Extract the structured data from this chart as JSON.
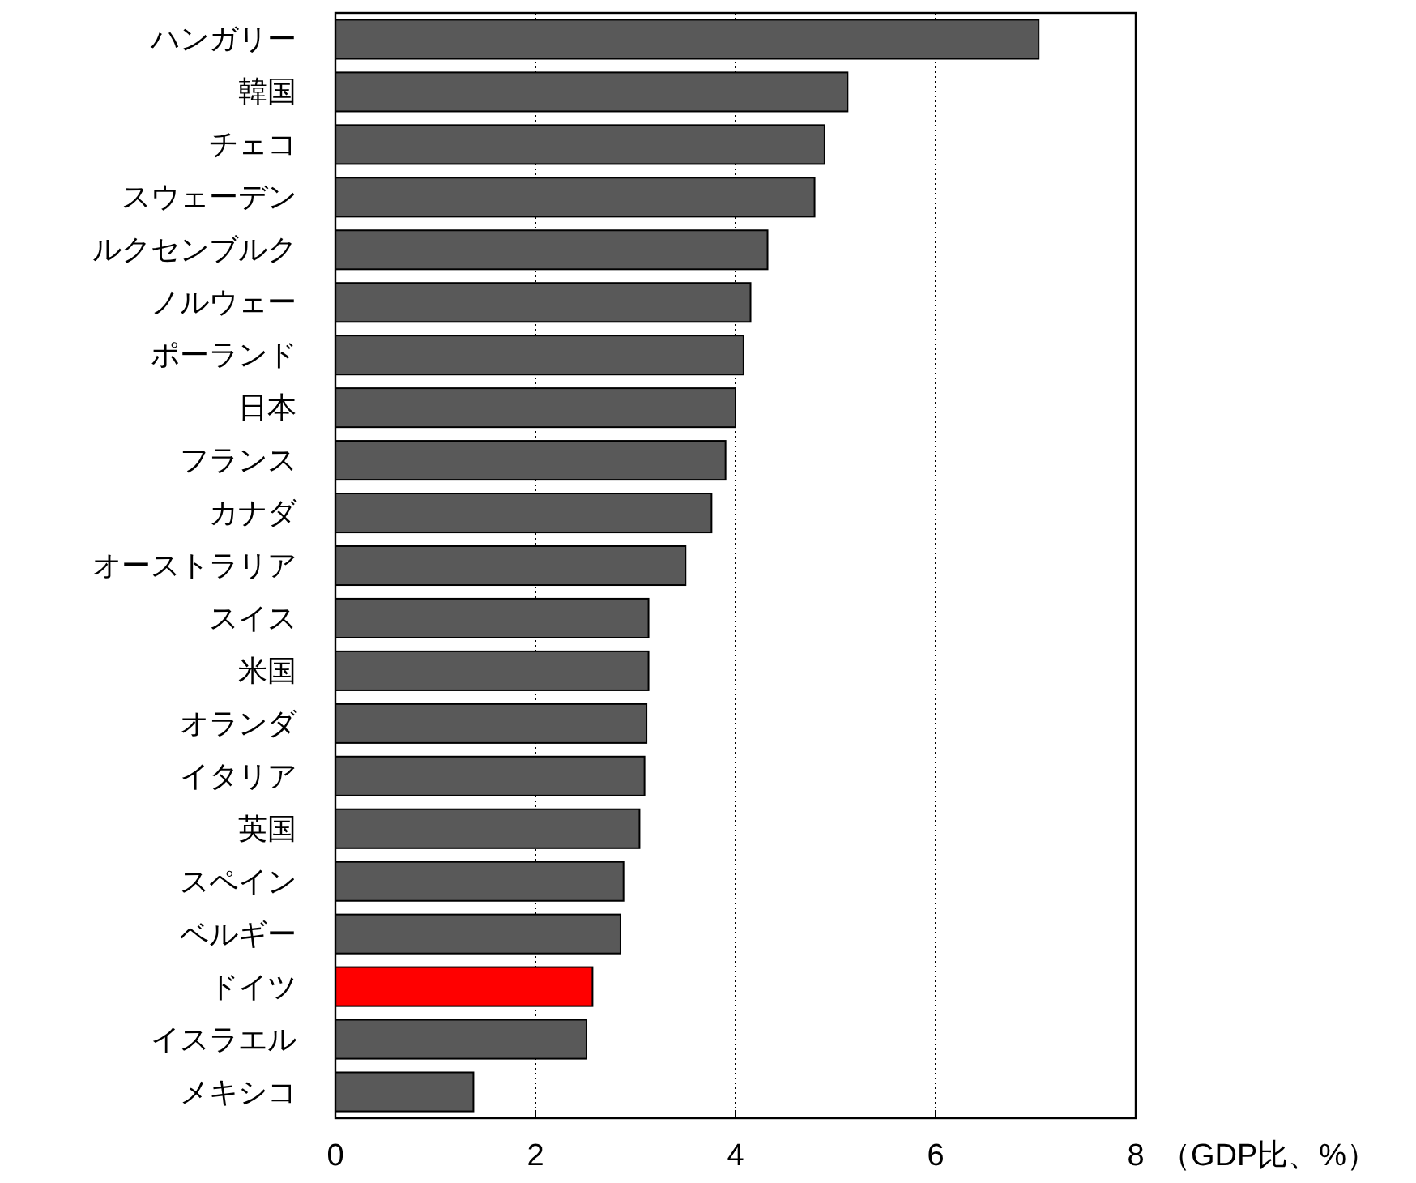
{
  "chart_data": {
    "type": "bar",
    "orientation": "horizontal",
    "categories": [
      "ハンガリー",
      "韓国",
      "チェコ",
      "スウェーデン",
      "ルクセンブルク",
      "ノルウェー",
      "ポーランド",
      "日本",
      "フランス",
      "カナダ",
      "オーストラリア",
      "スイス",
      "米国",
      "オランダ",
      "イタリア",
      "英国",
      "スペイン",
      "ベルギー",
      "ドイツ",
      "イスラエル",
      "メキシコ"
    ],
    "values": [
      7.03,
      5.12,
      4.89,
      4.79,
      4.32,
      4.15,
      4.08,
      4.0,
      3.9,
      3.76,
      3.5,
      3.13,
      3.13,
      3.11,
      3.09,
      3.04,
      2.88,
      2.85,
      2.57,
      2.51,
      1.38
    ],
    "colors": [
      "#595959",
      "#595959",
      "#595959",
      "#595959",
      "#595959",
      "#595959",
      "#595959",
      "#595959",
      "#595959",
      "#595959",
      "#595959",
      "#595959",
      "#595959",
      "#595959",
      "#595959",
      "#595959",
      "#595959",
      "#595959",
      "#ff0000",
      "#595959",
      "#595959"
    ],
    "xlim": [
      0,
      8
    ],
    "xticks": [
      0,
      2,
      4,
      6,
      8
    ],
    "grid": "x",
    "xlabel": "（GDP比、%）"
  }
}
